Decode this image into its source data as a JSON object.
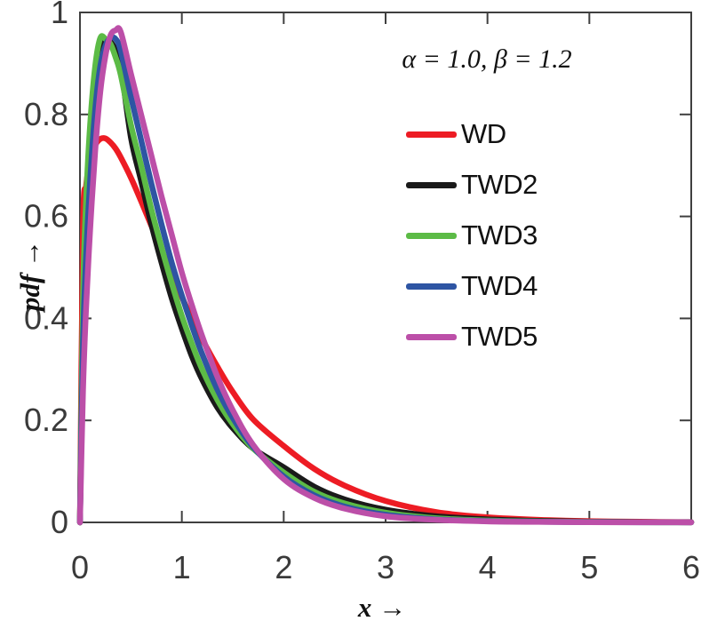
{
  "figure": {
    "background": "#ffffff",
    "axis_color": "#3f3f3f",
    "tick_label_color": "#3a3a3a"
  },
  "chart_data": {
    "type": "line",
    "title": "",
    "annotation": "α = 1.0, β = 1.2",
    "xlabel": "x →",
    "ylabel": "pdf →",
    "xlim": [
      0,
      6
    ],
    "ylim": [
      0,
      1
    ],
    "xticks": [
      0,
      1,
      2,
      3,
      4,
      5,
      6
    ],
    "xtick_labels": [
      "0",
      "1",
      "2",
      "3",
      "4",
      "5",
      "6"
    ],
    "yticks": [
      0,
      0.2,
      0.4,
      0.6,
      0.8,
      1
    ],
    "ytick_labels": [
      "0",
      "0.2",
      "0.4",
      "0.6",
      "0.8",
      "1"
    ],
    "grid": false,
    "box": true,
    "tick_dir": "in",
    "legend_position": "upper-right inside, no box",
    "x": [
      0,
      0.03,
      0.06,
      0.1,
      0.15,
      0.2,
      0.25,
      0.3,
      0.35,
      0.4,
      0.5,
      0.6,
      0.7,
      0.8,
      0.9,
      1.0,
      1.1,
      1.2,
      1.35,
      1.5,
      1.7,
      2.0,
      2.3,
      2.6,
      3.0,
      3.5,
      4.0,
      4.5,
      5.0,
      5.5,
      6.0
    ],
    "series": [
      {
        "name": "WD",
        "color": "#ED1C24",
        "peak": {
          "x": 0.25,
          "y": 0.753
        },
        "values": [
          0,
          0.58,
          0.66,
          0.711,
          0.74,
          0.752,
          0.753,
          0.745,
          0.733,
          0.716,
          0.676,
          0.63,
          0.582,
          0.534,
          0.487,
          0.442,
          0.399,
          0.359,
          0.305,
          0.256,
          0.202,
          0.15,
          0.105,
          0.072,
          0.042,
          0.02,
          0.01,
          0.005,
          0.0025,
          0.0012,
          0.0006
        ]
      },
      {
        "name": "TWD2",
        "color": "#1A1A1A",
        "peak": {
          "x": 0.25,
          "y": 0.945
        },
        "values": [
          0,
          0.4,
          0.58,
          0.73,
          0.855,
          0.925,
          0.945,
          0.942,
          0.925,
          0.895,
          0.755,
          0.67,
          0.585,
          0.51,
          0.44,
          0.38,
          0.325,
          0.28,
          0.225,
          0.185,
          0.145,
          0.108,
          0.07,
          0.045,
          0.025,
          0.012,
          0.006,
          0.003,
          0.0014,
          0.0007,
          0.0003
        ]
      },
      {
        "name": "TWD3",
        "color": "#5CBB46",
        "peak": {
          "x": 0.21,
          "y": 0.955
        },
        "values": [
          0,
          0.44,
          0.63,
          0.78,
          0.895,
          0.95,
          0.948,
          0.938,
          0.912,
          0.878,
          0.78,
          0.7,
          0.615,
          0.54,
          0.47,
          0.405,
          0.35,
          0.3,
          0.24,
          0.193,
          0.145,
          0.098,
          0.06,
          0.037,
          0.019,
          0.008,
          0.0037,
          0.0017,
          0.0008,
          0.0004,
          0.0002
        ]
      },
      {
        "name": "TWD4",
        "color": "#2E55A3",
        "peak": {
          "x": 0.31,
          "y": 0.951
        },
        "values": [
          0,
          0.35,
          0.52,
          0.67,
          0.81,
          0.895,
          0.935,
          0.95,
          0.948,
          0.925,
          0.835,
          0.75,
          0.665,
          0.585,
          0.51,
          0.445,
          0.385,
          0.33,
          0.26,
          0.205,
          0.148,
          0.09,
          0.053,
          0.031,
          0.015,
          0.006,
          0.0027,
          0.0013,
          0.0006,
          0.0003,
          0.00015
        ]
      },
      {
        "name": "TWD5",
        "color": "#BC4FA8",
        "peak": {
          "x": 0.37,
          "y": 0.966
        },
        "values": [
          0,
          0.26,
          0.42,
          0.575,
          0.73,
          0.845,
          0.915,
          0.955,
          0.965,
          0.962,
          0.88,
          0.8,
          0.72,
          0.64,
          0.565,
          0.49,
          0.425,
          0.365,
          0.285,
          0.22,
          0.152,
          0.085,
          0.048,
          0.027,
          0.012,
          0.005,
          0.002,
          0.001,
          0.0004,
          0.0002,
          0.0001
        ]
      }
    ]
  }
}
